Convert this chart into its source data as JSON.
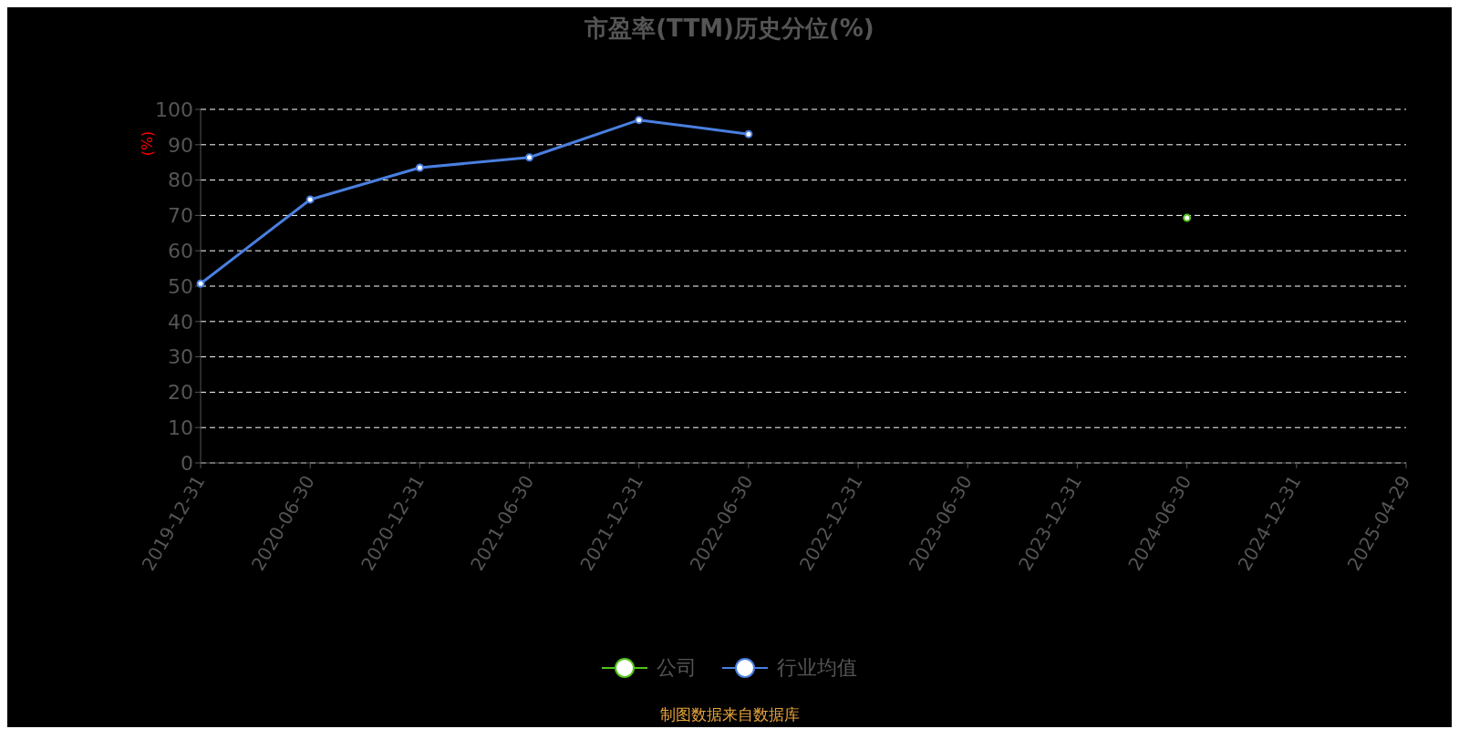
{
  "chart_data": {
    "type": "line",
    "title": "市盈率(TTM)历史分位(%)",
    "ylabel": "(%)",
    "categories": [
      "2019-12-31",
      "2020-06-30",
      "2020-12-31",
      "2021-06-30",
      "2021-12-31",
      "2022-06-30",
      "2022-12-31",
      "2023-06-30",
      "2023-12-31",
      "2024-06-30",
      "2024-12-31",
      "2025-04-29"
    ],
    "series": [
      {
        "name": "公司",
        "color": "#52c41a",
        "values": [
          null,
          null,
          null,
          null,
          null,
          null,
          null,
          null,
          null,
          69.3,
          null,
          null
        ]
      },
      {
        "name": "行业均值",
        "color": "#4a7fe0",
        "values": [
          50.7,
          74.5,
          83.5,
          86.4,
          97,
          93,
          null,
          null,
          null,
          null,
          null,
          null
        ]
      }
    ],
    "ylim": [
      0,
      100
    ],
    "yticks": [
      0,
      10,
      20,
      30,
      40,
      50,
      60,
      70,
      80,
      90,
      100
    ],
    "grid": "y",
    "legend": "bottom",
    "marker": "circle",
    "line_style": "solid",
    "annotations": [
      "制图数据来自数据库"
    ]
  }
}
